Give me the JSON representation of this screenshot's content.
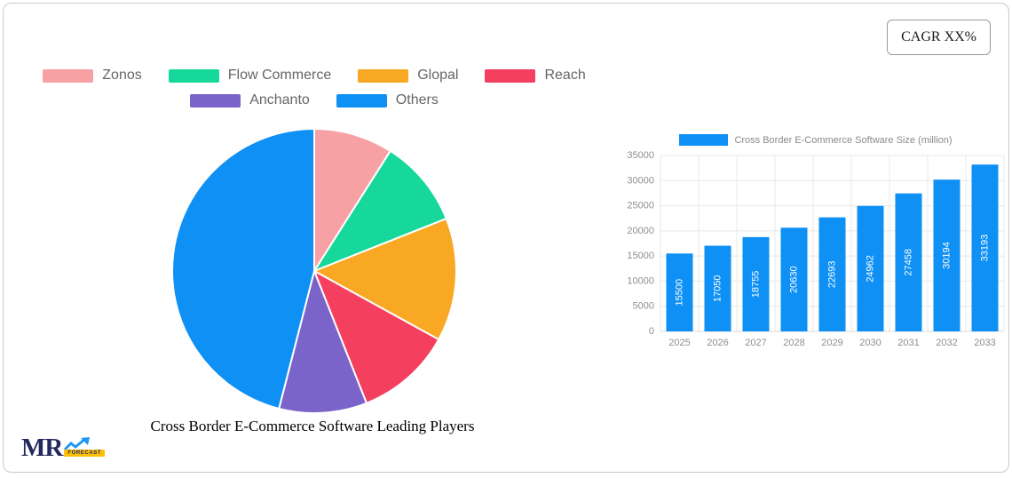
{
  "frame": {
    "cagr_label": "CAGR XX%"
  },
  "logo": {
    "mr": "MR",
    "forecast": "FORECAST"
  },
  "chart_data": [
    {
      "type": "pie",
      "title": "Cross Border E-Commerce Software Leading Players",
      "labels": [
        "Zonos",
        "Flow Commerce",
        "Glopal",
        "Reach",
        "Anchanto",
        "Others"
      ],
      "values": [
        9,
        10,
        14,
        11,
        10,
        46
      ],
      "colors": [
        "#F7A1A5",
        "#15D89A",
        "#F8A823",
        "#F43F5E",
        "#7B64C9",
        "#0E90F5"
      ],
      "legend_rows": [
        [
          0,
          1,
          2,
          3
        ],
        [
          4,
          5
        ]
      ],
      "legend_position": "top",
      "slice_border_color": "#ffffff"
    },
    {
      "type": "bar",
      "legend": "Cross Border E-Commerce Software Size (million)",
      "categories": [
        "2025",
        "2026",
        "2027",
        "2028",
        "2029",
        "2030",
        "2031",
        "2032",
        "2033"
      ],
      "values": [
        15500,
        17050,
        18755,
        20630,
        22693,
        24962,
        27458,
        30194,
        33193
      ],
      "ylim": [
        0,
        35000
      ],
      "ytick_step": 5000,
      "bar_color": "#0E90F5",
      "grid": true,
      "value_label_style": "inside-vertical-white",
      "legend_position": "top"
    }
  ]
}
